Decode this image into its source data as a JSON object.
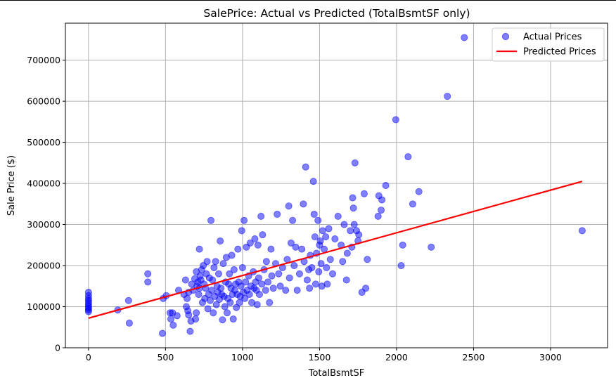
{
  "chart_data": {
    "type": "scatter",
    "title": "SalePrice: Actual vs Predicted (TotalBsmtSF only)",
    "xlabel": "TotalBsmtSF",
    "ylabel": "Sale Price ($)",
    "xlim": [
      -150,
      3370
    ],
    "ylim": [
      0,
      790000
    ],
    "xticks": [
      0,
      500,
      1000,
      1500,
      2000,
      2500,
      3000
    ],
    "yticks": [
      0,
      100000,
      200000,
      300000,
      400000,
      500000,
      600000,
      700000
    ],
    "grid": true,
    "legend_position": "top-right",
    "colors": {
      "actual": "#0000ff",
      "predicted": "#ff0000"
    },
    "series": [
      {
        "name": "Actual Prices",
        "kind": "scatter",
        "points": [
          [
            0,
            135000
          ],
          [
            0,
            127000
          ],
          [
            0,
            120000
          ],
          [
            0,
            115000
          ],
          [
            0,
            110000
          ],
          [
            0,
            105000
          ],
          [
            0,
            100000
          ],
          [
            0,
            96000
          ],
          [
            0,
            92000
          ],
          [
            0,
            88000
          ],
          [
            190,
            92000
          ],
          [
            260,
            115000
          ],
          [
            265,
            60000
          ],
          [
            385,
            180000
          ],
          [
            385,
            160000
          ],
          [
            480,
            35000
          ],
          [
            485,
            120000
          ],
          [
            505,
            127000
          ],
          [
            530,
            85000
          ],
          [
            535,
            70000
          ],
          [
            545,
            85000
          ],
          [
            550,
            55000
          ],
          [
            575,
            78000
          ],
          [
            585,
            140000
          ],
          [
            620,
            130000
          ],
          [
            630,
            165000
          ],
          [
            635,
            100000
          ],
          [
            640,
            120000
          ],
          [
            645,
            90000
          ],
          [
            650,
            80000
          ],
          [
            650,
            135000
          ],
          [
            660,
            40000
          ],
          [
            665,
            65000
          ],
          [
            670,
            155000
          ],
          [
            680,
            140000
          ],
          [
            690,
            168000
          ],
          [
            695,
            70000
          ],
          [
            700,
            85000
          ],
          [
            700,
            185000
          ],
          [
            705,
            150000
          ],
          [
            710,
            160000
          ],
          [
            715,
            130000
          ],
          [
            720,
            145000
          ],
          [
            720,
            240000
          ],
          [
            725,
            175000
          ],
          [
            730,
            165000
          ],
          [
            735,
            190000
          ],
          [
            740,
            110000
          ],
          [
            745,
            200000
          ],
          [
            750,
            155000
          ],
          [
            755,
            120000
          ],
          [
            760,
            145000
          ],
          [
            765,
            180000
          ],
          [
            770,
            210000
          ],
          [
            775,
            95000
          ],
          [
            780,
            130000
          ],
          [
            785,
            170000
          ],
          [
            790,
            115000
          ],
          [
            795,
            310000
          ],
          [
            800,
            140000
          ],
          [
            805,
            165000
          ],
          [
            810,
            85000
          ],
          [
            815,
            195000
          ],
          [
            820,
            125000
          ],
          [
            825,
            210000
          ],
          [
            830,
            105000
          ],
          [
            835,
            150000
          ],
          [
            840,
            135000
          ],
          [
            845,
            180000
          ],
          [
            850,
            118000
          ],
          [
            855,
            260000
          ],
          [
            860,
            145000
          ],
          [
            865,
            130000
          ],
          [
            870,
            68000
          ],
          [
            875,
            205000
          ],
          [
            880,
            125000
          ],
          [
            885,
            100000
          ],
          [
            890,
            160000
          ],
          [
            895,
            220000
          ],
          [
            900,
            85000
          ],
          [
            905,
            120000
          ],
          [
            910,
            155000
          ],
          [
            915,
            180000
          ],
          [
            920,
            110000
          ],
          [
            925,
            145000
          ],
          [
            930,
            225000
          ],
          [
            935,
            130000
          ],
          [
            940,
            70000
          ],
          [
            945,
            190000
          ],
          [
            950,
            140000
          ],
          [
            955,
            155000
          ],
          [
            960,
            98000
          ],
          [
            965,
            130000
          ],
          [
            970,
            240000
          ],
          [
            975,
            160000
          ],
          [
            980,
            110000
          ],
          [
            985,
            125000
          ],
          [
            990,
            150000
          ],
          [
            995,
            285000
          ],
          [
            1000,
            195000
          ],
          [
            1005,
            135000
          ],
          [
            1010,
            310000
          ],
          [
            1015,
            120000
          ],
          [
            1020,
            160000
          ],
          [
            1025,
            245000
          ],
          [
            1030,
            140000
          ],
          [
            1040,
            175000
          ],
          [
            1045,
            130000
          ],
          [
            1050,
            255000
          ],
          [
            1055,
            150000
          ],
          [
            1060,
            110000
          ],
          [
            1070,
            185000
          ],
          [
            1075,
            145000
          ],
          [
            1080,
            265000
          ],
          [
            1085,
            160000
          ],
          [
            1090,
            140000
          ],
          [
            1095,
            105000
          ],
          [
            1100,
            250000
          ],
          [
            1105,
            170000
          ],
          [
            1110,
            130000
          ],
          [
            1120,
            320000
          ],
          [
            1125,
            155000
          ],
          [
            1130,
            275000
          ],
          [
            1140,
            190000
          ],
          [
            1150,
            140000
          ],
          [
            1155,
            210000
          ],
          [
            1165,
            160000
          ],
          [
            1175,
            110000
          ],
          [
            1185,
            240000
          ],
          [
            1190,
            175000
          ],
          [
            1200,
            145000
          ],
          [
            1215,
            205000
          ],
          [
            1225,
            325000
          ],
          [
            1235,
            180000
          ],
          [
            1245,
            150000
          ],
          [
            1260,
            195000
          ],
          [
            1280,
            140000
          ],
          [
            1290,
            215000
          ],
          [
            1300,
            345000
          ],
          [
            1305,
            170000
          ],
          [
            1315,
            255000
          ],
          [
            1325,
            310000
          ],
          [
            1335,
            200000
          ],
          [
            1345,
            245000
          ],
          [
            1355,
            140000
          ],
          [
            1370,
            180000
          ],
          [
            1385,
            240000
          ],
          [
            1395,
            350000
          ],
          [
            1400,
            210000
          ],
          [
            1410,
            440000
          ],
          [
            1420,
            165000
          ],
          [
            1430,
            190000
          ],
          [
            1435,
            145000
          ],
          [
            1440,
            225000
          ],
          [
            1450,
            195000
          ],
          [
            1460,
            405000
          ],
          [
            1465,
            325000
          ],
          [
            1470,
            270000
          ],
          [
            1475,
            155000
          ],
          [
            1480,
            230000
          ],
          [
            1490,
            310000
          ],
          [
            1495,
            185000
          ],
          [
            1500,
            250000
          ],
          [
            1505,
            260000
          ],
          [
            1510,
            205000
          ],
          [
            1515,
            150000
          ],
          [
            1520,
            285000
          ],
          [
            1530,
            240000
          ],
          [
            1540,
            270000
          ],
          [
            1545,
            195000
          ],
          [
            1550,
            155000
          ],
          [
            1560,
            290000
          ],
          [
            1570,
            215000
          ],
          [
            1585,
            180000
          ],
          [
            1600,
            265000
          ],
          [
            1620,
            320000
          ],
          [
            1640,
            250000
          ],
          [
            1650,
            210000
          ],
          [
            1660,
            300000
          ],
          [
            1675,
            165000
          ],
          [
            1680,
            230000
          ],
          [
            1700,
            285000
          ],
          [
            1710,
            245000
          ],
          [
            1715,
            365000
          ],
          [
            1720,
            340000
          ],
          [
            1725,
            300000
          ],
          [
            1730,
            450000
          ],
          [
            1740,
            285000
          ],
          [
            1750,
            260000
          ],
          [
            1755,
            275000
          ],
          [
            1775,
            135000
          ],
          [
            1790,
            375000
          ],
          [
            1800,
            145000
          ],
          [
            1810,
            215000
          ],
          [
            1880,
            320000
          ],
          [
            1885,
            370000
          ],
          [
            1900,
            335000
          ],
          [
            1905,
            360000
          ],
          [
            1930,
            395000
          ],
          [
            1995,
            555000
          ],
          [
            2030,
            200000
          ],
          [
            2040,
            250000
          ],
          [
            2075,
            465000
          ],
          [
            2105,
            350000
          ],
          [
            2145,
            380000
          ],
          [
            2225,
            245000
          ],
          [
            2330,
            612000
          ],
          [
            2440,
            755000
          ],
          [
            3205,
            285000
          ]
        ]
      },
      {
        "name": "Predicted Prices",
        "kind": "line",
        "points": [
          [
            0,
            72000
          ],
          [
            3205,
            405000
          ]
        ]
      }
    ]
  }
}
